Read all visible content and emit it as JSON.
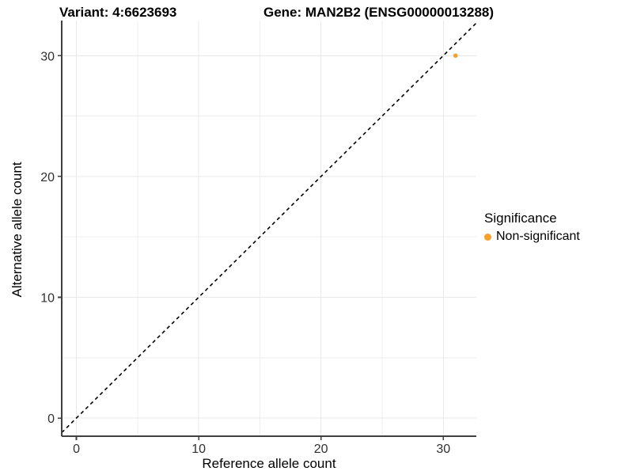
{
  "header": {
    "variant_title": "Variant: 4:6623693",
    "gene_title": "Gene: MAN2B2 (ENSG00000013288)"
  },
  "axes": {
    "x_label": "Reference allele count",
    "y_label": "Alternative allele count"
  },
  "legend": {
    "title": "Significance",
    "items": [
      {
        "label": "Non-significant",
        "color": "#F8A029"
      }
    ]
  },
  "chart_data": {
    "type": "scatter",
    "title_left": "Variant: 4:6623693",
    "title_right": "Gene: MAN2B2 (ENSG00000013288)",
    "xlabel": "Reference allele count",
    "ylabel": "Alternative allele count",
    "xlim": [
      -1.2,
      32.7
    ],
    "ylim": [
      -1.5,
      32.9
    ],
    "x_ticks": [
      0,
      10,
      20,
      30
    ],
    "y_ticks": [
      0,
      10,
      20,
      30
    ],
    "x_minor_ticks": [
      5,
      15,
      25
    ],
    "y_minor_ticks": [
      5,
      15,
      25
    ],
    "grid": "major+minor",
    "legend_position": "right",
    "series": [
      {
        "name": "Non-significant",
        "color": "#F8A029",
        "points": [
          {
            "x": 31,
            "y": 30
          }
        ]
      }
    ],
    "reference_line": {
      "kind": "identity",
      "slope": 1,
      "intercept": 0,
      "style": "dashed",
      "color": "#000000"
    }
  },
  "style_colors": {
    "point": "#F8A029",
    "grid_major": "#E8E8E8",
    "grid_minor": "#EFEFEF",
    "axis_line": "#404040",
    "tick_text": "#303030"
  }
}
